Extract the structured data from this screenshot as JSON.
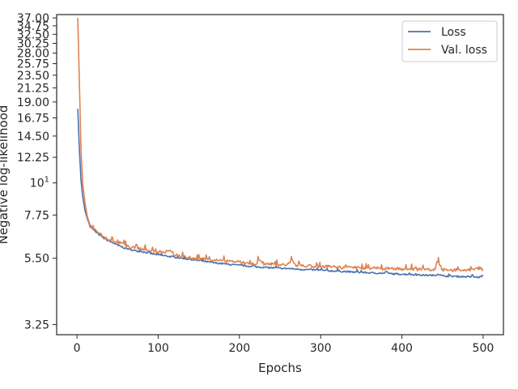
{
  "chart_data": {
    "type": "line",
    "title": "",
    "xlabel": "Epochs",
    "ylabel": "Negative log-likelihood",
    "yscale": "log",
    "xlim": [
      -25,
      525
    ],
    "ylim": [
      3.0,
      38.0
    ],
    "xticks": [
      {
        "value": 0,
        "label": "0"
      },
      {
        "value": 100,
        "label": "100"
      },
      {
        "value": 200,
        "label": "200"
      },
      {
        "value": 300,
        "label": "300"
      },
      {
        "value": 400,
        "label": "400"
      },
      {
        "value": 500,
        "label": "500"
      }
    ],
    "yticks": [
      {
        "value": 3.25,
        "label": "3.25"
      },
      {
        "value": 5.5,
        "label": "5.50"
      },
      {
        "value": 7.75,
        "label": "7.75"
      },
      {
        "value": 10,
        "label": "10",
        "sup": "1"
      },
      {
        "value": 12.25,
        "label": "12.25"
      },
      {
        "value": 14.5,
        "label": "14.50"
      },
      {
        "value": 16.75,
        "label": "16.75"
      },
      {
        "value": 19.0,
        "label": "19.00"
      },
      {
        "value": 21.25,
        "label": "21.25"
      },
      {
        "value": 23.5,
        "label": "23.50"
      },
      {
        "value": 25.75,
        "label": "25.75"
      },
      {
        "value": 28.0,
        "label": "28.00"
      },
      {
        "value": 30.25,
        "label": "30.25"
      },
      {
        "value": 32.5,
        "label": "32.50"
      },
      {
        "value": 34.75,
        "label": "34.75"
      },
      {
        "value": 37.0,
        "label": "37.00"
      }
    ],
    "grid": false,
    "legend_position": "top-right",
    "series": [
      {
        "name": "Loss",
        "color": "#4c72b0",
        "x": [
          1,
          3,
          5,
          7,
          10,
          13,
          16,
          20,
          25,
          30,
          35,
          40,
          45,
          50,
          60,
          70,
          80,
          90,
          100,
          110,
          120,
          130,
          140,
          150,
          160,
          170,
          180,
          190,
          200,
          210,
          220,
          230,
          240,
          250,
          260,
          270,
          280,
          290,
          300,
          310,
          320,
          330,
          340,
          350,
          360,
          370,
          380,
          390,
          400,
          410,
          420,
          430,
          440,
          445,
          450,
          460,
          470,
          480,
          490,
          495,
          500
        ],
        "values": [
          18.0,
          13.0,
          10.2,
          9.0,
          8.0,
          7.5,
          7.1,
          6.9,
          6.7,
          6.55,
          6.4,
          6.3,
          6.2,
          6.1,
          5.95,
          5.85,
          5.8,
          5.72,
          5.65,
          5.6,
          5.55,
          5.5,
          5.45,
          5.4,
          5.35,
          5.3,
          5.27,
          5.23,
          5.2,
          5.17,
          5.14,
          5.12,
          5.1,
          5.08,
          5.07,
          5.05,
          5.03,
          5.02,
          5.0,
          4.98,
          4.97,
          4.95,
          4.93,
          4.92,
          4.9,
          4.89,
          4.88,
          4.86,
          4.85,
          4.84,
          4.82,
          4.81,
          4.8,
          4.86,
          4.78,
          4.77,
          4.76,
          4.75,
          4.74,
          4.73,
          4.8
        ]
      },
      {
        "name": "Val. loss",
        "color": "#dd8452",
        "x": [
          1,
          3,
          5,
          7,
          10,
          13,
          16,
          20,
          25,
          30,
          35,
          40,
          45,
          50,
          55,
          60,
          70,
          80,
          90,
          100,
          110,
          115,
          120,
          130,
          140,
          150,
          160,
          170,
          180,
          190,
          200,
          210,
          220,
          225,
          230,
          240,
          250,
          260,
          265,
          270,
          280,
          290,
          300,
          310,
          320,
          330,
          340,
          350,
          360,
          370,
          380,
          390,
          400,
          410,
          420,
          430,
          440,
          445,
          450,
          460,
          470,
          480,
          490,
          495,
          500
        ],
        "values": [
          37.0,
          22.0,
          13.0,
          10.0,
          8.5,
          7.6,
          7.2,
          6.95,
          6.8,
          6.6,
          6.5,
          6.35,
          6.25,
          6.2,
          6.25,
          6.05,
          6.0,
          5.9,
          5.85,
          5.8,
          5.75,
          5.85,
          5.65,
          5.6,
          5.52,
          5.47,
          5.45,
          5.42,
          5.38,
          5.36,
          5.33,
          5.3,
          5.28,
          5.45,
          5.27,
          5.25,
          5.22,
          5.22,
          5.4,
          5.2,
          5.18,
          5.17,
          5.16,
          5.15,
          5.13,
          5.12,
          5.12,
          5.1,
          5.1,
          5.08,
          5.07,
          5.06,
          5.06,
          5.05,
          5.04,
          5.03,
          5.02,
          5.35,
          5.02,
          5.01,
          5.02,
          5.0,
          5.02,
          5.1,
          5.03
        ]
      }
    ]
  }
}
